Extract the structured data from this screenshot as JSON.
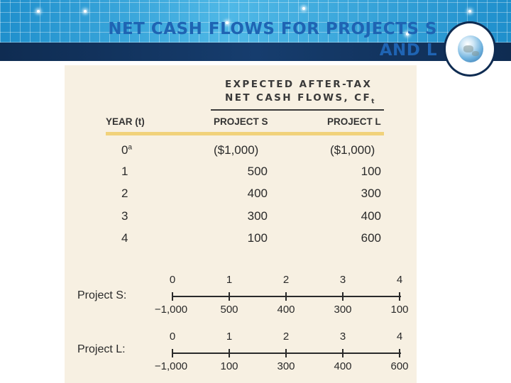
{
  "slide": {
    "title": "NET CASH FLOWS FOR PROJECTS S AND L"
  },
  "colors": {
    "title": "#1f64b3",
    "header_light": "#2a9fd6",
    "header_dark": "#0f2c52",
    "figure_bg": "#f7f0e2",
    "accent_rule": "#f1d27a"
  },
  "table": {
    "super_header_line1": "EXPECTED AFTER-TAX",
    "super_header_line2": "NET CASH FLOWS, CF",
    "super_header_subscript": "t",
    "headers": {
      "year": "YEAR (t)",
      "project_s": "PROJECT S",
      "project_l": "PROJECT L"
    },
    "rows": [
      {
        "year": "0",
        "footnote": "a",
        "s": "($1,000)",
        "l": "($1,000)"
      },
      {
        "year": "1",
        "footnote": "",
        "s": "500",
        "l": "100"
      },
      {
        "year": "2",
        "footnote": "",
        "s": "400",
        "l": "300"
      },
      {
        "year": "3",
        "footnote": "",
        "s": "300",
        "l": "400"
      },
      {
        "year": "4",
        "footnote": "",
        "s": "100",
        "l": "600"
      }
    ]
  },
  "timelines": [
    {
      "label": "Project S:",
      "periods": [
        "0",
        "1",
        "2",
        "3",
        "4"
      ],
      "values": [
        "−1,000",
        "500",
        "400",
        "300",
        "100"
      ]
    },
    {
      "label": "Project L:",
      "periods": [
        "0",
        "1",
        "2",
        "3",
        "4"
      ],
      "values": [
        "−1,000",
        "100",
        "300",
        "400",
        "600"
      ]
    }
  ],
  "icons": {
    "logo": "globe-icon"
  }
}
